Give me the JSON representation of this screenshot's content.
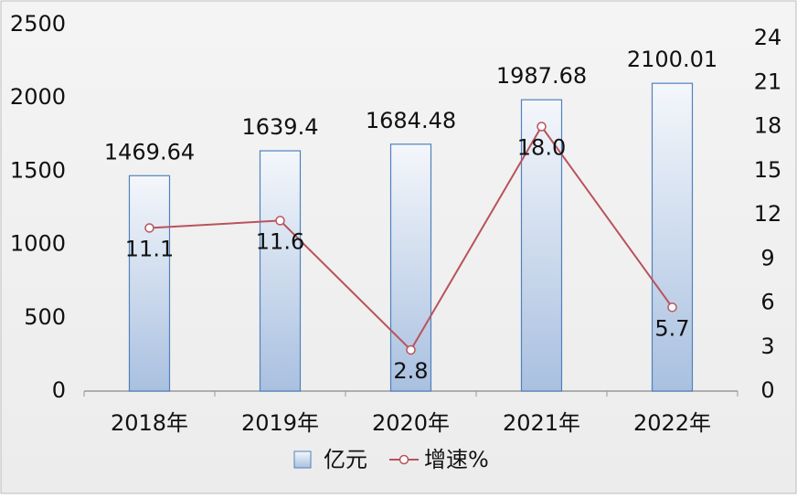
{
  "chart_data": {
    "type": "bar",
    "categories": [
      "2018年",
      "2019年",
      "2020年",
      "2021年",
      "2022年"
    ],
    "series": [
      {
        "name": "亿元",
        "type": "bar",
        "color": "#4f81bd",
        "values": [
          1469.64,
          1639.4,
          1684.48,
          1987.68,
          2100.01
        ]
      },
      {
        "name": "增速%",
        "type": "line",
        "axis": "y2",
        "color": "#b9535b",
        "values": [
          11.1,
          11.6,
          2.8,
          18.0,
          5.7
        ],
        "value_labels": [
          "11.1",
          "11.6",
          "2.8",
          "18.0",
          "5.7"
        ]
      }
    ],
    "ylim": [
      0,
      2500
    ],
    "yticks": [
      0,
      500,
      1000,
      1500,
      2000,
      2500
    ],
    "y2lim": [
      0,
      24
    ],
    "y2ticks": [
      0,
      3,
      6,
      9,
      12,
      15,
      18,
      21,
      24
    ],
    "legend": "bottom"
  }
}
